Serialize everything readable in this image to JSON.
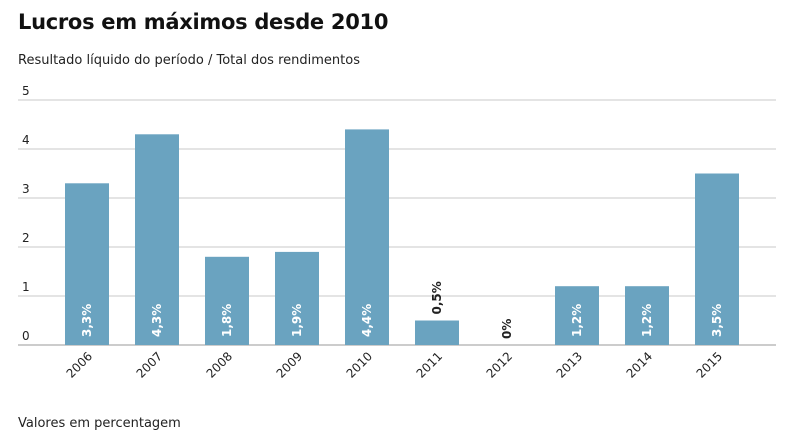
{
  "chart_data": {
    "type": "bar",
    "title": "Lucros em máximos desde 2010",
    "subtitle": "Resultado líquido do período / Total dos rendimentos",
    "footnote": "Valores em percentagem",
    "xlabel": "",
    "ylabel": "",
    "categories": [
      "2006",
      "2007",
      "2008",
      "2009",
      "2010",
      "2011",
      "2012",
      "2013",
      "2014",
      "2015"
    ],
    "values": [
      3.3,
      4.3,
      1.8,
      1.9,
      4.4,
      0.5,
      0,
      1.2,
      1.2,
      3.5
    ],
    "labels": [
      "3,3%",
      "4,3%",
      "1,8%",
      "1,9%",
      "4,4%",
      "0,5%",
      "0%",
      "1,2%",
      "1,2%",
      "3,5%"
    ],
    "ylim": [
      0,
      5
    ],
    "yticks": [
      "0",
      "1",
      "2",
      "3",
      "4",
      "5"
    ],
    "grid": true,
    "bar_color": "#6aa3c0"
  }
}
